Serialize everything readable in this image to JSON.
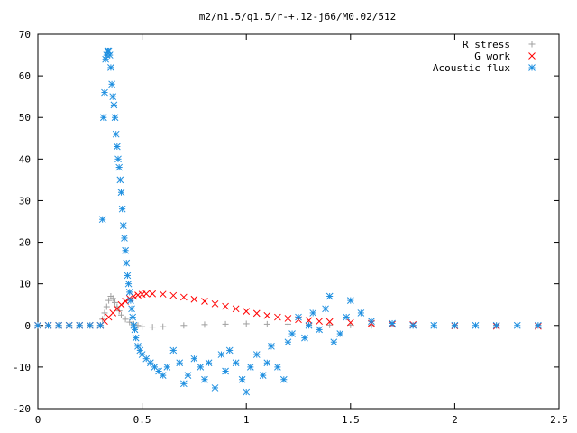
{
  "chart_data": {
    "type": "scatter",
    "title": "m2/n1.5/q1.5/r-+.12-j66/M0.02/512",
    "xlabel": "",
    "ylabel": "",
    "xlim": [
      0,
      2.5
    ],
    "ylim": [
      -20,
      70
    ],
    "x_ticks": [
      0,
      0.5,
      1,
      1.5,
      2,
      2.5
    ],
    "x_tick_labels": [
      "0",
      "0.5",
      "1",
      "1.5",
      "2",
      "2.5"
    ],
    "y_ticks": [
      -20,
      -10,
      0,
      10,
      20,
      30,
      40,
      50,
      60,
      70
    ],
    "y_tick_labels": [
      "-20",
      "-10",
      "0",
      "10",
      "20",
      "30",
      "40",
      "50",
      "60",
      "70"
    ],
    "grid": false,
    "legend_position": "top-right",
    "series": [
      {
        "name": "R stress",
        "marker": "plus",
        "color": "#a0a0a0",
        "x": [
          0.0,
          0.05,
          0.1,
          0.15,
          0.2,
          0.25,
          0.3,
          0.31,
          0.32,
          0.33,
          0.34,
          0.35,
          0.36,
          0.37,
          0.38,
          0.39,
          0.4,
          0.42,
          0.44,
          0.46,
          0.48,
          0.5,
          0.55,
          0.6,
          0.7,
          0.8,
          0.9,
          1.0,
          1.1,
          1.2,
          1.3,
          1.4,
          1.5,
          1.6,
          1.8,
          2.0,
          2.2,
          2.4
        ],
        "y": [
          0,
          0,
          0,
          0,
          0,
          0,
          0,
          1.5,
          3,
          4.5,
          6,
          7,
          6.5,
          5.5,
          4.5,
          3.5,
          2.5,
          1.5,
          0.8,
          0.3,
          0,
          -0.3,
          -0.4,
          -0.3,
          0,
          0.2,
          0.3,
          0.4,
          0.3,
          0.3,
          0.2,
          0.1,
          0.1,
          0,
          0,
          0,
          0,
          0
        ]
      },
      {
        "name": "G work",
        "marker": "cross",
        "color": "#ff0000",
        "x": [
          0.0,
          0.05,
          0.1,
          0.15,
          0.2,
          0.25,
          0.3,
          0.32,
          0.34,
          0.36,
          0.38,
          0.4,
          0.42,
          0.44,
          0.46,
          0.48,
          0.5,
          0.52,
          0.55,
          0.6,
          0.65,
          0.7,
          0.75,
          0.8,
          0.85,
          0.9,
          0.95,
          1.0,
          1.05,
          1.1,
          1.15,
          1.2,
          1.25,
          1.3,
          1.35,
          1.4,
          1.5,
          1.6,
          1.7,
          1.8,
          2.0,
          2.2,
          2.4
        ],
        "y": [
          0,
          0,
          0,
          0,
          0,
          0,
          0,
          1,
          2,
          3,
          4,
          5,
          5.8,
          6.5,
          7,
          7.3,
          7.5,
          7.6,
          7.6,
          7.5,
          7.2,
          6.8,
          6.3,
          5.8,
          5.2,
          4.6,
          4,
          3.4,
          2.9,
          2.4,
          2,
          1.7,
          1.4,
          1.2,
          1,
          0.9,
          0.7,
          0.5,
          0.3,
          0.2,
          -0.1,
          -0.2,
          -0.2
        ]
      },
      {
        "name": "Acoustic flux",
        "marker": "star",
        "color": "#1e8fe0",
        "x": [
          0.0,
          0.05,
          0.1,
          0.15,
          0.2,
          0.25,
          0.3,
          0.31,
          0.315,
          0.32,
          0.325,
          0.33,
          0.335,
          0.34,
          0.345,
          0.35,
          0.355,
          0.36,
          0.365,
          0.37,
          0.375,
          0.38,
          0.385,
          0.39,
          0.395,
          0.4,
          0.405,
          0.41,
          0.415,
          0.42,
          0.425,
          0.43,
          0.435,
          0.44,
          0.445,
          0.45,
          0.455,
          0.46,
          0.465,
          0.47,
          0.48,
          0.49,
          0.5,
          0.52,
          0.54,
          0.56,
          0.58,
          0.6,
          0.62,
          0.65,
          0.68,
          0.7,
          0.72,
          0.75,
          0.78,
          0.8,
          0.82,
          0.85,
          0.88,
          0.9,
          0.92,
          0.95,
          0.98,
          1.0,
          1.02,
          1.05,
          1.08,
          1.1,
          1.12,
          1.15,
          1.18,
          1.2,
          1.22,
          1.25,
          1.28,
          1.3,
          1.32,
          1.35,
          1.38,
          1.4,
          1.42,
          1.45,
          1.48,
          1.5,
          1.55,
          1.6,
          1.7,
          1.8,
          1.9,
          2.0,
          2.1,
          2.2,
          2.3,
          2.4
        ],
        "y": [
          0,
          0,
          0,
          0,
          0,
          0,
          0,
          25.5,
          50,
          56,
          64,
          65,
          66,
          66,
          65,
          62,
          58,
          55,
          53,
          50,
          46,
          43,
          40,
          38,
          35,
          32,
          28,
          24,
          21,
          18,
          15,
          12,
          10,
          8,
          6,
          4,
          2,
          0,
          -1,
          -3,
          -5,
          -6,
          -7,
          -8,
          -9,
          -10,
          -11,
          -12,
          -10,
          -6,
          -9,
          -14,
          -12,
          -8,
          -10,
          -13,
          -9,
          -15,
          -7,
          -11,
          -6,
          -9,
          -13,
          -16,
          -10,
          -7,
          -12,
          -9,
          -5,
          -10,
          -13,
          -4,
          -2,
          2,
          -3,
          0,
          3,
          -1,
          4,
          7,
          -4,
          -2,
          2,
          6,
          3,
          1,
          0.5,
          0,
          0,
          0,
          0,
          0,
          0,
          0
        ]
      }
    ]
  }
}
